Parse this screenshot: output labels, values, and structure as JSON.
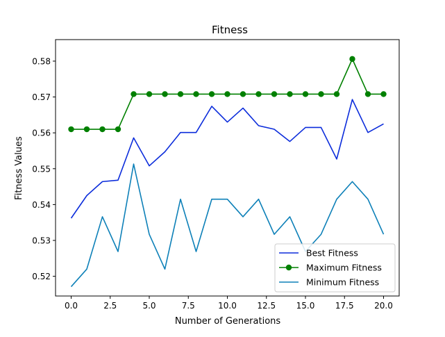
{
  "chart_data": {
    "type": "line",
    "title": "Fitness",
    "xlabel": "Number of Generations",
    "ylabel": "Fitness Values",
    "xlim": [
      -1.0,
      21.0
    ],
    "ylim": [
      0.5145,
      0.586
    ],
    "xticks": [
      0.0,
      2.5,
      5.0,
      7.5,
      10.0,
      12.5,
      15.0,
      17.5,
      20.0
    ],
    "xtick_labels": [
      "0.0",
      "2.5",
      "5.0",
      "7.5",
      "10.0",
      "12.5",
      "15.0",
      "17.5",
      "20.0"
    ],
    "yticks": [
      0.52,
      0.53,
      0.54,
      0.55,
      0.56,
      0.57,
      0.58
    ],
    "ytick_labels": [
      "0.52",
      "0.53",
      "0.54",
      "0.55",
      "0.56",
      "0.57",
      "0.58"
    ],
    "grid": false,
    "legend_position": "lower-right",
    "x": [
      0,
      1,
      2,
      3,
      4,
      5,
      6,
      7,
      8,
      9,
      10,
      11,
      12,
      13,
      14,
      15,
      16,
      17,
      18,
      19,
      20
    ],
    "series": [
      {
        "name": "Best Fitness",
        "color": "#0b2cdb",
        "marker": "none",
        "values": [
          0.5362,
          0.5425,
          0.5464,
          0.5468,
          0.5586,
          0.5508,
          0.5547,
          0.5601,
          0.5601,
          0.5674,
          0.563,
          0.5669,
          0.562,
          0.561,
          0.5576,
          0.5615,
          0.5615,
          0.5527,
          0.5693,
          0.5601,
          0.5625
        ]
      },
      {
        "name": "Maximum Fitness",
        "color": "#008000",
        "marker": "circle",
        "values": [
          0.561,
          0.561,
          0.561,
          0.561,
          0.5708,
          0.5708,
          0.5708,
          0.5708,
          0.5708,
          0.5708,
          0.5708,
          0.5708,
          0.5708,
          0.5708,
          0.5708,
          0.5708,
          0.5708,
          0.5708,
          0.5806,
          0.5708,
          0.5708
        ]
      },
      {
        "name": "Minimum Fitness",
        "color": "#0d80b8",
        "marker": "none",
        "values": [
          0.5171,
          0.522,
          0.5366,
          0.5269,
          0.5513,
          0.5317,
          0.522,
          0.5415,
          0.5269,
          0.5415,
          0.5415,
          0.5366,
          0.5415,
          0.5317,
          0.5366,
          0.5269,
          0.5317,
          0.5415,
          0.5464,
          0.5415,
          0.5317
        ]
      }
    ]
  }
}
